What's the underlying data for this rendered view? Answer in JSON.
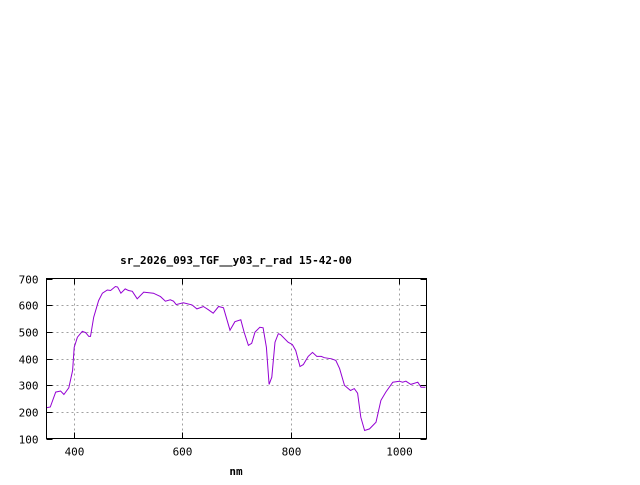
{
  "chart_data": {
    "type": "line",
    "title": "sr_2026_093_TGF__y03_r_rad 15-42-00",
    "xlabel": "nm",
    "ylabel": "",
    "xlim": [
      350,
      1050
    ],
    "ylim": [
      100,
      700
    ],
    "xticks": [
      400,
      600,
      800,
      1000
    ],
    "yticks": [
      100,
      200,
      300,
      400,
      500,
      600,
      700
    ],
    "grid": true,
    "line_color": "#9400d3",
    "series": [
      {
        "x": [
          350,
          357,
          367,
          376,
          382,
          391,
          398,
          401,
          407,
          416,
          422,
          428,
          431,
          437,
          446,
          453,
          462,
          468,
          477,
          481,
          487,
          495,
          501,
          508,
          517,
          529,
          547,
          560,
          569,
          578,
          584,
          589,
          602,
          618,
          627,
          639,
          648,
          657,
          667,
          676,
          688,
          697,
          708,
          714,
          722,
          728,
          734,
          743,
          749,
          755,
          760,
          765,
          771,
          777,
          781,
          795,
          803,
          809,
          817,
          823,
          832,
          840,
          848,
          856,
          862,
          875,
          883,
          890,
          899,
          910,
          917,
          923,
          929,
          936,
          945,
          957,
          966,
          975,
          988,
          1000,
          1006,
          1012,
          1021,
          1034,
          1040,
          1048
        ],
        "y": [
          215,
          218,
          274,
          278,
          265,
          290,
          355,
          442,
          480,
          502,
          497,
          483,
          483,
          555,
          617,
          645,
          657,
          655,
          670,
          668,
          645,
          661,
          655,
          652,
          624,
          649,
          645,
          632,
          615,
          620,
          615,
          602,
          609,
          601,
          586,
          595,
          583,
          570,
          595,
          590,
          506,
          538,
          545,
          499,
          449,
          457,
          499,
          517,
          515,
          442,
          303,
          330,
          461,
          493,
          490,
          461,
          452,
          430,
          370,
          377,
          408,
          423,
          408,
          408,
          403,
          399,
          393,
          362,
          299,
          280,
          287,
          270,
          180,
          130,
          136,
          161,
          243,
          274,
          311,
          315,
          311,
          315,
          303,
          311,
          292,
          292
        ]
      }
    ]
  }
}
